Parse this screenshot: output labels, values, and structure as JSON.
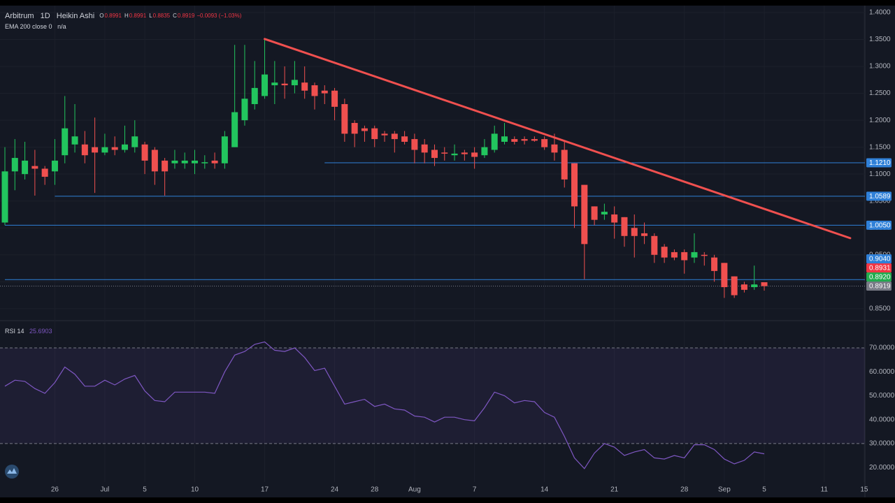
{
  "chart_data": [
    {
      "type": "candlestick",
      "symbol": "Arbitrum",
      "interval": "1D",
      "style": "Heikin Ashi",
      "ohlc_legend": [
        {
          "key": "O",
          "value": "0.8991"
        },
        {
          "key": "H",
          "value": "0.8991"
        },
        {
          "key": "L",
          "value": "0.8835"
        },
        {
          "key": "C",
          "value": "0.8919"
        }
      ],
      "change": "−0.0093 (−1.03%)",
      "indicator": "EMA 200 close 0",
      "indicator_value": "n/a",
      "categories": [
        null,
        null,
        null,
        null,
        null,
        "26",
        null,
        null,
        null,
        null,
        "Jul",
        null,
        null,
        null,
        "5",
        null,
        null,
        null,
        null,
        "10",
        null,
        null,
        null,
        null,
        null,
        null,
        "17",
        null,
        null,
        null,
        null,
        null,
        null,
        "24",
        null,
        null,
        null,
        "28",
        null,
        null,
        null,
        "Aug",
        null,
        null,
        null,
        null,
        null,
        "7",
        null,
        null,
        null,
        null,
        null,
        null,
        "14",
        null,
        null,
        null,
        null,
        null,
        null,
        "21",
        null,
        null,
        null,
        null,
        null,
        null,
        "28",
        null,
        null,
        null,
        "Sep",
        null,
        null,
        null,
        "5",
        null,
        null,
        null,
        null,
        null,
        "11",
        null,
        null,
        null,
        "15"
      ],
      "open": [
        1.01,
        1.105,
        1.1,
        1.115,
        1.11,
        1.105,
        1.135,
        1.155,
        1.155,
        1.15,
        1.14,
        1.15,
        1.145,
        1.15,
        1.155,
        1.145,
        1.125,
        1.12,
        1.12,
        1.12,
        1.12,
        1.125,
        1.12,
        1.15,
        1.2,
        1.23,
        1.245,
        1.265,
        1.268,
        1.265,
        1.27,
        1.265,
        1.255,
        1.255,
        1.23,
        1.195,
        1.185,
        1.185,
        1.175,
        1.175,
        1.17,
        1.165,
        1.155,
        1.145,
        1.14,
        1.135,
        1.14,
        1.14,
        1.135,
        1.145,
        1.16,
        1.165,
        1.165,
        1.165,
        1.165,
        1.155,
        1.145,
        1.12,
        1.08,
        1.04,
        1.025,
        1.025,
        1.02,
        1.0,
        0.99,
        0.985,
        0.965,
        0.955,
        0.955,
        0.945,
        0.95,
        0.945,
        0.935,
        0.91,
        0.895,
        0.89,
        0.8991,
        null,
        null,
        null,
        null,
        null,
        null,
        null,
        null,
        null,
        null
      ],
      "high": [
        1.15,
        1.165,
        1.16,
        1.145,
        1.115,
        1.165,
        1.245,
        1.23,
        1.18,
        1.205,
        1.175,
        1.17,
        1.19,
        1.2,
        1.16,
        1.15,
        1.13,
        1.145,
        1.14,
        1.145,
        1.135,
        1.14,
        1.18,
        1.34,
        1.34,
        1.31,
        1.35,
        1.31,
        1.3,
        1.31,
        1.3,
        1.27,
        1.265,
        1.26,
        1.24,
        1.2,
        1.19,
        1.19,
        1.18,
        1.18,
        1.18,
        1.175,
        1.165,
        1.155,
        1.15,
        1.155,
        1.145,
        1.15,
        1.165,
        1.19,
        1.195,
        1.17,
        1.17,
        1.17,
        1.17,
        1.175,
        1.16,
        1.12,
        1.08,
        1.04,
        1.045,
        1.04,
        1.02,
        1.025,
        1.01,
        0.99,
        0.97,
        0.96,
        0.96,
        0.99,
        0.955,
        0.95,
        0.935,
        0.91,
        0.9,
        0.93,
        0.8991,
        null,
        null,
        null,
        null,
        null,
        null,
        null,
        null,
        null,
        null
      ],
      "low": [
        1.005,
        1.07,
        1.09,
        1.06,
        1.08,
        1.08,
        1.12,
        1.14,
        1.12,
        1.065,
        1.135,
        1.135,
        1.14,
        1.14,
        1.1,
        1.08,
        1.06,
        1.11,
        1.11,
        1.1,
        1.11,
        1.11,
        1.11,
        1.15,
        1.19,
        1.22,
        1.24,
        1.23,
        1.24,
        1.25,
        1.24,
        1.22,
        1.23,
        1.2,
        1.16,
        1.15,
        1.16,
        1.15,
        1.16,
        1.14,
        1.155,
        1.12,
        1.12,
        1.115,
        1.125,
        1.125,
        1.125,
        1.11,
        1.13,
        1.14,
        1.155,
        1.155,
        1.155,
        1.16,
        1.145,
        1.125,
        1.075,
        1.0,
        0.905,
        1.005,
        1.015,
        0.98,
        0.965,
        0.945,
        0.97,
        0.935,
        0.935,
        0.94,
        0.915,
        0.935,
        0.93,
        0.9,
        0.87,
        0.87,
        0.88,
        0.885,
        0.8835,
        null,
        null,
        null,
        null,
        null,
        null,
        null,
        null,
        null,
        null
      ],
      "close": [
        1.105,
        1.13,
        1.125,
        1.11,
        1.095,
        1.125,
        1.185,
        1.17,
        1.135,
        1.14,
        1.15,
        1.145,
        1.155,
        1.17,
        1.125,
        1.105,
        1.105,
        1.125,
        1.125,
        1.125,
        1.122,
        1.12,
        1.17,
        1.215,
        1.24,
        1.26,
        1.285,
        1.27,
        1.265,
        1.275,
        1.255,
        1.245,
        1.25,
        1.225,
        1.175,
        1.175,
        1.18,
        1.165,
        1.172,
        1.165,
        1.16,
        1.145,
        1.14,
        1.13,
        1.138,
        1.138,
        1.137,
        1.132,
        1.15,
        1.175,
        1.17,
        1.16,
        1.162,
        1.162,
        1.15,
        1.14,
        1.09,
        1.04,
        0.97,
        1.015,
        1.03,
        1.01,
        0.985,
        0.985,
        0.985,
        0.95,
        0.945,
        0.945,
        0.94,
        0.955,
        0.948,
        0.92,
        0.89,
        0.875,
        0.885,
        0.895,
        0.8919,
        null,
        null,
        null,
        null,
        null,
        null,
        null,
        null,
        null,
        null
      ],
      "up_color": "#22c55e",
      "down_color": "#f0504f",
      "ylim": [
        0.829,
        1.413
      ],
      "yticks": [
        {
          "value": 0.85,
          "label": "0.8500"
        },
        {
          "value": 0.9,
          "label": "0.9000"
        },
        {
          "value": 0.95,
          "label": "0.9500"
        },
        {
          "value": 1.0,
          "label": "1.0000"
        },
        {
          "value": 1.05,
          "label": "1.0500"
        },
        {
          "value": 1.1,
          "label": "1.1000"
        },
        {
          "value": 1.15,
          "label": "1.1500"
        },
        {
          "value": 1.2,
          "label": "1.2000"
        },
        {
          "value": 1.25,
          "label": "1.2500"
        },
        {
          "value": 1.3,
          "label": "1.3000"
        },
        {
          "value": 1.35,
          "label": "1.3500"
        },
        {
          "value": 1.4,
          "label": "1.4000"
        }
      ],
      "grid": true,
      "level_color": "#2f80d8",
      "levels": [
        {
          "value": 1.121,
          "label": "1.1210",
          "start": 32
        },
        {
          "value": 1.0589,
          "label": "1.0589",
          "start": 5
        },
        {
          "value": 1.005,
          "label": "1.0050",
          "start": 0
        },
        {
          "value": 0.904,
          "label": "0.9040",
          "start": 0
        }
      ],
      "price_tags": [
        {
          "value": 0.8931,
          "label": "0.8931",
          "color": "#f23645"
        },
        {
          "value": 0.892,
          "label": "0.8920",
          "color": "#22ab4f"
        },
        {
          "value": 0.8919,
          "label": "0.8919",
          "color": "#787b86"
        }
      ],
      "trendline": {
        "x": [
          26,
          84.6
        ],
        "y": [
          1.351,
          0.981
        ],
        "color": "#f0504f"
      }
    },
    {
      "type": "line",
      "title": "RSI 14",
      "legend_value": "25.6903",
      "values": [
        54,
        56.5,
        56,
        53,
        51,
        55.5,
        62,
        59,
        54,
        54,
        56.5,
        54.5,
        57,
        58.5,
        52,
        48,
        47.5,
        51.5,
        51.5,
        51.5,
        51.5,
        51,
        60,
        67,
        68.5,
        71.5,
        72.5,
        69,
        68.5,
        70,
        66,
        60.5,
        61.5,
        54,
        46.5,
        47.5,
        48.5,
        45.5,
        46.5,
        44.5,
        44,
        41.5,
        41,
        39,
        41,
        41,
        40,
        39.5,
        45,
        51.5,
        50,
        47,
        48,
        47.5,
        43,
        41,
        33,
        24,
        19.5,
        26,
        30,
        28.5,
        25,
        26.5,
        27.5,
        24,
        23.5,
        25,
        24,
        29.5,
        29.5,
        27.5,
        23.5,
        21.5,
        23,
        26.5,
        25.6903,
        null,
        null,
        null,
        null,
        null,
        null,
        null,
        null,
        null,
        null
      ],
      "color": "#7e57c2",
      "ylim": [
        13.9,
        81.1
      ],
      "yticks": [
        {
          "value": 20,
          "label": "20.0000"
        },
        {
          "value": 30,
          "label": "30.0000"
        },
        {
          "value": 40,
          "label": "40.0000"
        },
        {
          "value": 50,
          "label": "50.0000"
        },
        {
          "value": 60,
          "label": "60.0000"
        },
        {
          "value": 70,
          "label": "70.0000"
        }
      ],
      "upper_band": 70,
      "lower_band": 30
    }
  ]
}
